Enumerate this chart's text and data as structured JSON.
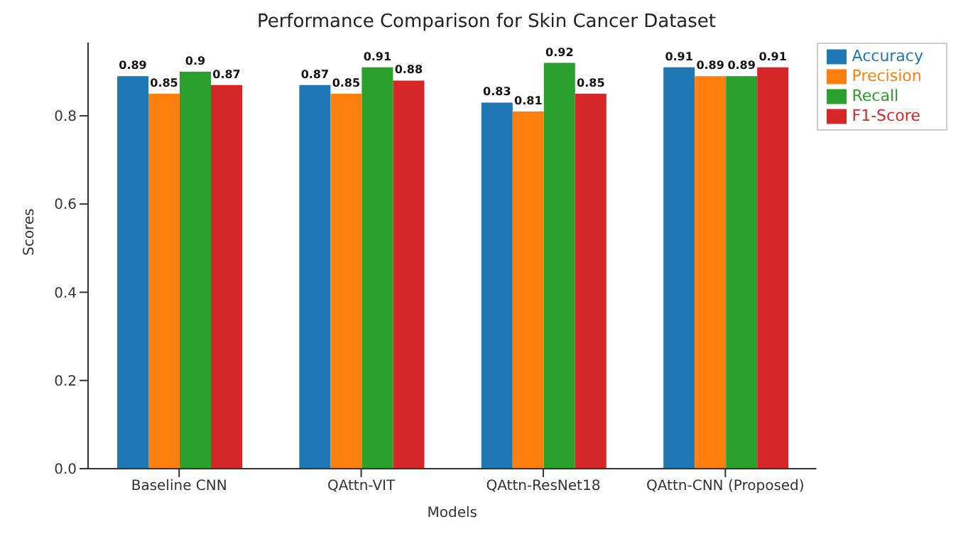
{
  "chart_data": {
    "type": "bar",
    "title": "Performance Comparison for Skin Cancer Dataset",
    "xlabel": "Models",
    "ylabel": "Scores",
    "categories": [
      "Baseline CNN",
      "QAttn-VIT",
      "QAttn-ResNet18",
      "QAttn-CNN (Proposed)"
    ],
    "series": [
      {
        "name": "Accuracy",
        "color": "#1f77b4",
        "values": [
          0.89,
          0.87,
          0.83,
          0.91
        ]
      },
      {
        "name": "Precision",
        "color": "#ff7f0e",
        "values": [
          0.85,
          0.85,
          0.81,
          0.89
        ]
      },
      {
        "name": "Recall",
        "color": "#2ca02c",
        "values": [
          0.9,
          0.91,
          0.92,
          0.89
        ]
      },
      {
        "name": "F1-Score",
        "color": "#d62728",
        "values": [
          0.87,
          0.88,
          0.85,
          0.91
        ]
      }
    ],
    "ylim": [
      0,
      0.966
    ],
    "yticks": [
      {
        "value": 0,
        "label": "0.0"
      },
      {
        "value": 0.2,
        "label": "0.2"
      },
      {
        "value": 0.4,
        "label": "0.4"
      },
      {
        "value": 0.6,
        "label": "0.6"
      },
      {
        "value": 0.8,
        "label": "0.8"
      }
    ],
    "data_labels": true,
    "grid": false,
    "legend": "top right"
  }
}
